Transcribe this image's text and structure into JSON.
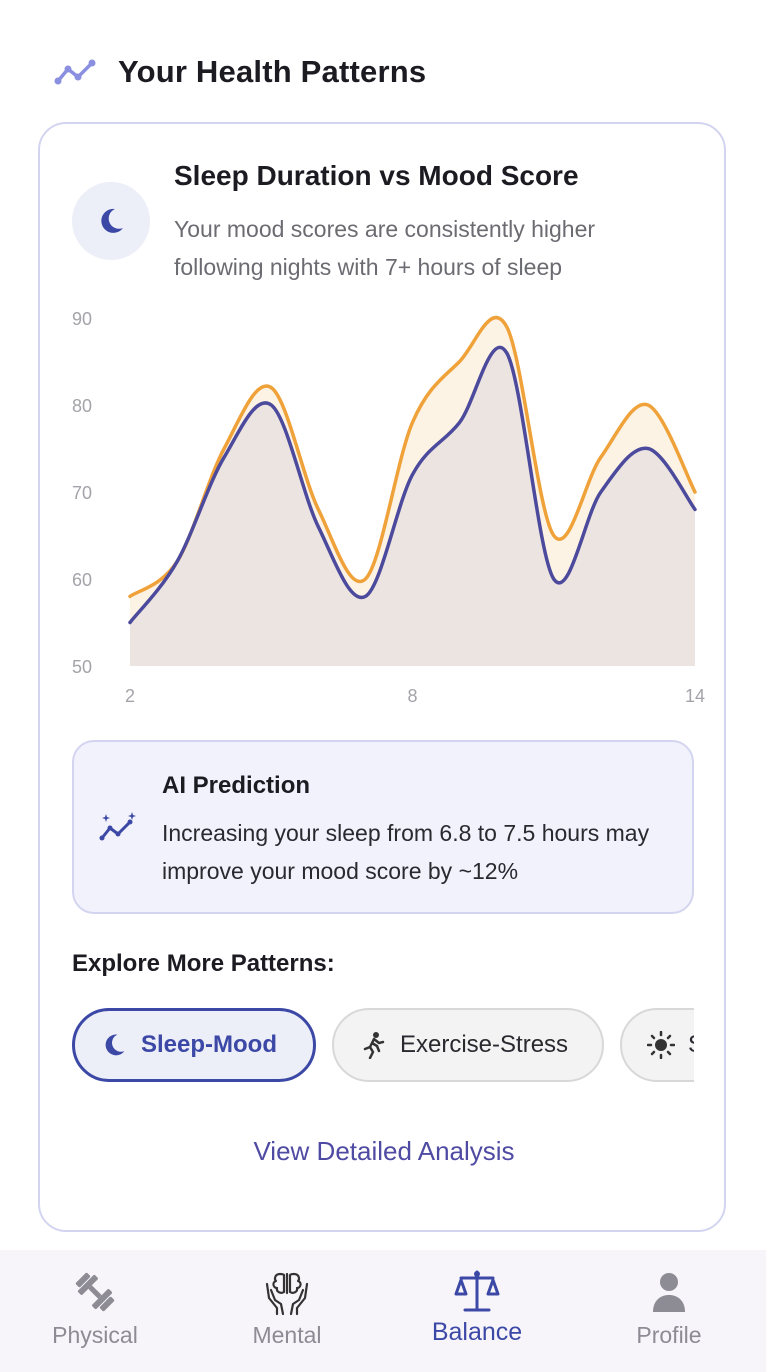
{
  "header": {
    "title": "Your Health Patterns",
    "icon": "trend-line-icon"
  },
  "insight": {
    "icon": "moon-icon",
    "title": "Sleep Duration vs Mood Score",
    "description": "Your mood scores are consistently higher following nights with 7+ hours of sleep"
  },
  "chart_data": {
    "type": "area",
    "x": [
      2,
      3,
      4,
      5,
      6,
      7,
      8,
      9,
      10,
      11,
      12,
      13,
      14
    ],
    "series": [
      {
        "values": [
          58,
          62,
          75,
          82,
          68,
          60,
          78,
          85,
          89,
          65,
          74,
          80,
          70
        ],
        "color": "#f0a23a"
      },
      {
        "values": [
          55,
          62,
          74,
          80,
          66,
          58,
          72,
          78,
          86,
          60,
          70,
          75,
          68
        ],
        "color": "#4c4a9c"
      }
    ],
    "x_ticks": [
      "2",
      "8",
      "14"
    ],
    "y_ticks": [
      "50",
      "60",
      "70",
      "80",
      "90"
    ],
    "ylim": [
      50,
      90
    ],
    "xlim": [
      2,
      14
    ],
    "grid": false
  },
  "ai": {
    "icon": "sparkle-trend-icon",
    "title": "AI Prediction",
    "text": "Increasing your sleep from 6.8 to 7.5 hours may improve your mood score by ~12%"
  },
  "explore": {
    "title": "Explore More Patterns:",
    "chips": [
      {
        "label": "Sleep-Mood",
        "icon": "moon-icon",
        "active": true
      },
      {
        "label": "Exercise-Stress",
        "icon": "running-person-icon",
        "active": false
      },
      {
        "label": "S",
        "icon": "sun-icon",
        "active": false
      }
    ]
  },
  "detail_link": "View Detailed Analysis",
  "nav": {
    "items": [
      {
        "label": "Physical",
        "icon": "dumbbell-icon",
        "active": false
      },
      {
        "label": "Mental",
        "icon": "brain-hands-icon",
        "active": false
      },
      {
        "label": "Balance",
        "icon": "balance-scale-icon",
        "active": true
      },
      {
        "label": "Profile",
        "icon": "person-icon",
        "active": false
      }
    ]
  },
  "colors": {
    "accent": "#3c48a6",
    "orange": "#f0a23a",
    "purple": "#4c4a9c",
    "card_border": "#d3d5f0"
  }
}
